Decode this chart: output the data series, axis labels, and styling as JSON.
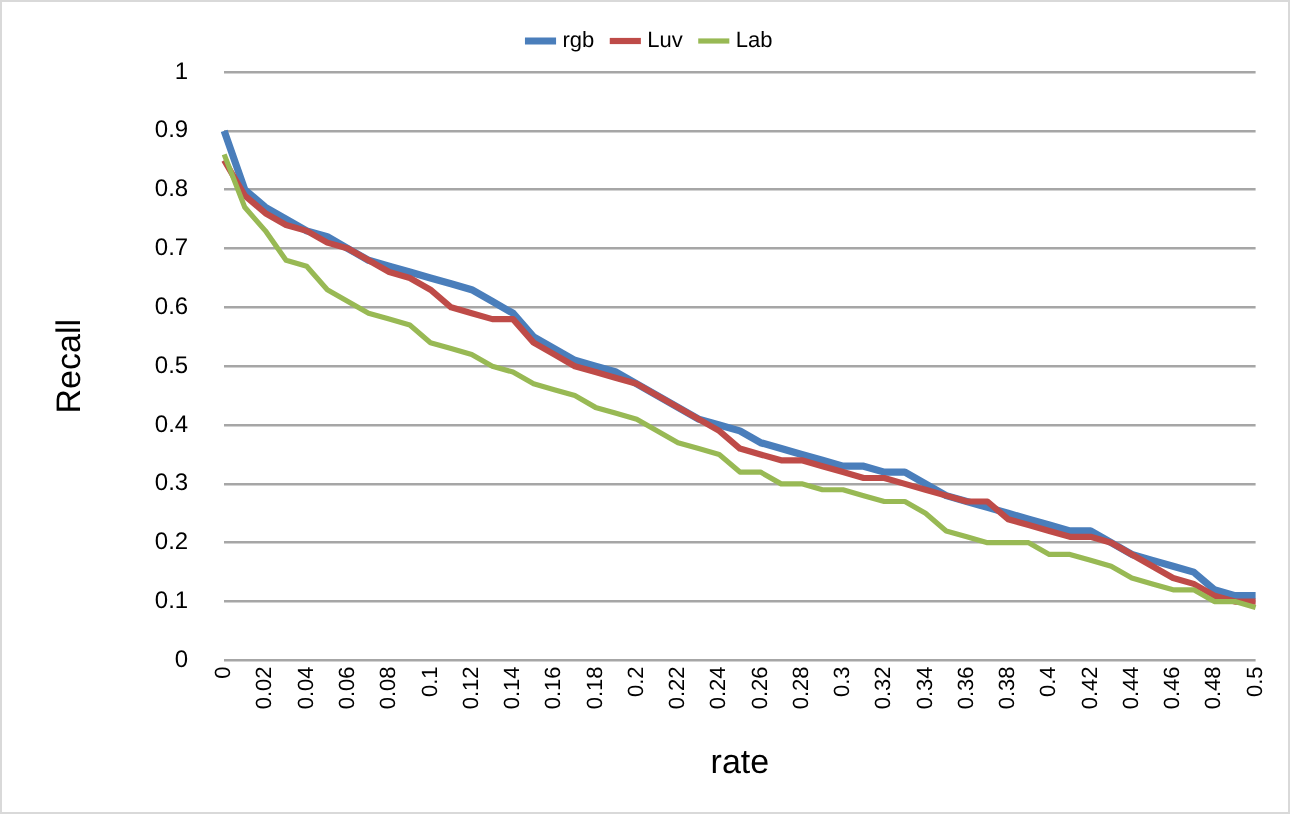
{
  "chart_data": {
    "type": "line",
    "xlabel": "rate",
    "ylabel": "Recall",
    "categories": [
      "0",
      null,
      "0.02",
      null,
      "0.04",
      null,
      "0.06",
      null,
      "0.08",
      null,
      "0.1",
      null,
      "0.12",
      null,
      "0.14",
      null,
      "0.16",
      null,
      "0.18",
      null,
      "0.2",
      null,
      "0.22",
      null,
      "0.24",
      null,
      "0.26",
      null,
      "0.28",
      null,
      "0.3",
      null,
      "0.32",
      null,
      "0.34",
      null,
      "0.36",
      null,
      "0.38",
      null,
      "0.4",
      null,
      "0.42",
      null,
      "0.44",
      null,
      "0.46",
      null,
      "0.48",
      null,
      "0.5"
    ],
    "series": [
      {
        "name": "rgb",
        "color": "#4a7ebb",
        "values": [
          0.9,
          0.8,
          0.77,
          0.75,
          0.73,
          0.72,
          0.7,
          0.68,
          0.67,
          0.66,
          0.65,
          0.64,
          0.63,
          0.61,
          0.59,
          0.55,
          0.53,
          0.51,
          0.5,
          0.49,
          0.47,
          0.45,
          0.43,
          0.41,
          0.4,
          0.39,
          0.37,
          0.36,
          0.35,
          0.34,
          0.33,
          0.33,
          0.32,
          0.32,
          0.3,
          0.28,
          0.27,
          0.26,
          0.25,
          0.24,
          0.23,
          0.22,
          0.22,
          0.2,
          0.18,
          0.17,
          0.16,
          0.15,
          0.12,
          0.11,
          0.11
        ]
      },
      {
        "name": "Luv",
        "color": "#be4b48",
        "values": [
          0.85,
          0.79,
          0.76,
          0.74,
          0.73,
          0.71,
          0.7,
          0.68,
          0.66,
          0.65,
          0.63,
          0.6,
          0.59,
          0.58,
          0.58,
          0.54,
          0.52,
          0.5,
          0.49,
          0.48,
          0.47,
          0.45,
          0.43,
          0.41,
          0.39,
          0.36,
          0.35,
          0.34,
          0.34,
          0.33,
          0.32,
          0.31,
          0.31,
          0.3,
          0.29,
          0.28,
          0.27,
          0.27,
          0.24,
          0.23,
          0.22,
          0.21,
          0.21,
          0.2,
          0.18,
          0.16,
          0.14,
          0.13,
          0.11,
          0.1,
          0.1
        ]
      },
      {
        "name": "Lab",
        "color": "#98b954",
        "values": [
          0.86,
          0.77,
          0.73,
          0.68,
          0.67,
          0.63,
          0.61,
          0.59,
          0.58,
          0.57,
          0.54,
          0.53,
          0.52,
          0.5,
          0.49,
          0.47,
          0.46,
          0.45,
          0.43,
          0.42,
          0.41,
          0.39,
          0.37,
          0.36,
          0.35,
          0.32,
          0.32,
          0.3,
          0.3,
          0.29,
          0.29,
          0.28,
          0.27,
          0.27,
          0.25,
          0.22,
          0.21,
          0.2,
          0.2,
          0.2,
          0.18,
          0.18,
          0.17,
          0.16,
          0.14,
          0.13,
          0.12,
          0.12,
          0.1,
          0.1,
          0.09
        ]
      }
    ],
    "ylim": [
      0,
      1
    ],
    "yticks": [
      0,
      0.1,
      0.2,
      0.3,
      0.4,
      0.5,
      0.6,
      0.7,
      0.8,
      0.9,
      1
    ],
    "grid": "y",
    "legend": "top",
    "marker": "none",
    "line_style": "solid"
  }
}
